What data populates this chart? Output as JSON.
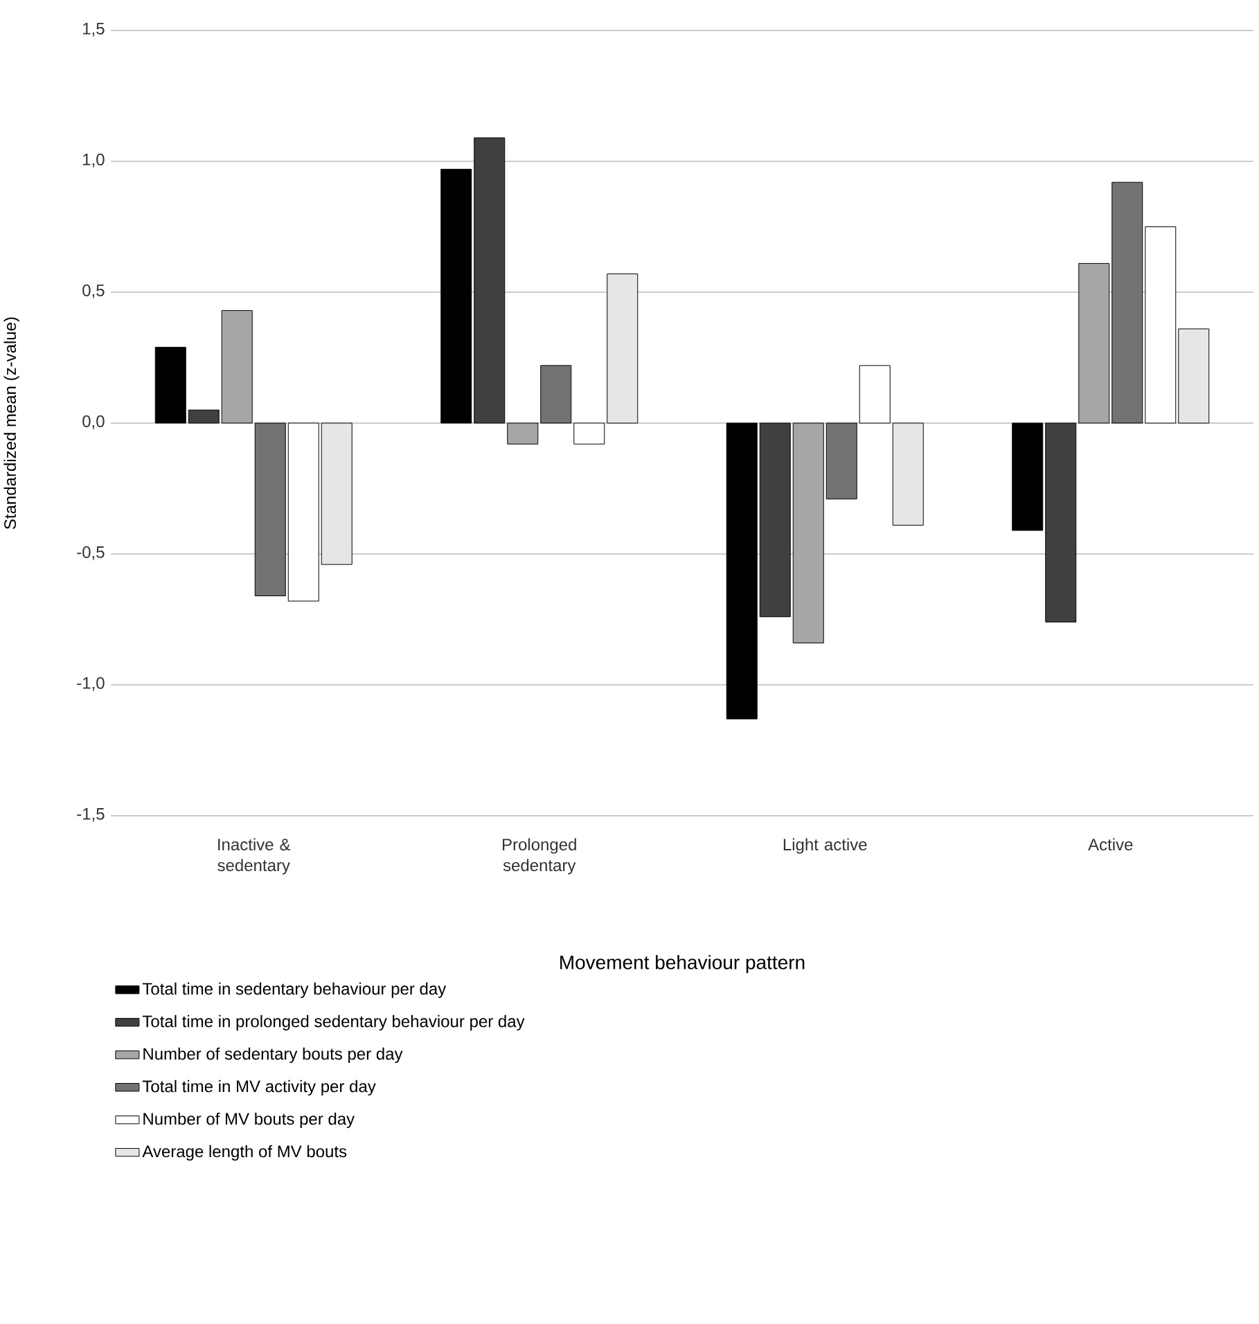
{
  "chart_data": {
    "type": "bar",
    "xlabel": "Movement behaviour pattern",
    "ylabel": "Standardized mean (z-value)",
    "categories": [
      "Inactive & sedentary",
      "Prolonged sedentary",
      "Light active",
      "Active"
    ],
    "ylim": [
      -1.5,
      1.5
    ],
    "yticks": [
      {
        "value": -1.5,
        "label": "-1,5"
      },
      {
        "value": -1.0,
        "label": "-1,0"
      },
      {
        "value": -0.5,
        "label": "-0,5"
      },
      {
        "value": 0,
        "label": "0,0"
      },
      {
        "value": 0.5,
        "label": "0,5"
      },
      {
        "value": 1.0,
        "label": "1,0"
      },
      {
        "value": 1.5,
        "label": "1,5"
      }
    ],
    "grid": "y",
    "legend": "bottom",
    "series": [
      {
        "name": "Total time in sedentary behaviour per day",
        "color": "#000000",
        "values": [
          0.29,
          0.97,
          -1.13,
          -0.41
        ]
      },
      {
        "name": "Total time in prolonged sedentary behaviour per day",
        "color": "#404040",
        "values": [
          0.05,
          1.09,
          -0.74,
          -0.76
        ]
      },
      {
        "name": "Number of sedentary bouts per day",
        "color": "#a6a6a6",
        "values": [
          0.43,
          -0.08,
          -0.84,
          0.61
        ]
      },
      {
        "name": "Total time in MV activity per day",
        "color": "#737373",
        "values": [
          -0.66,
          0.22,
          -0.29,
          0.92
        ]
      },
      {
        "name": "Number of MV bouts per day",
        "color": "#ffffff",
        "values": [
          -0.68,
          -0.08,
          0.22,
          0.75
        ]
      },
      {
        "name": "Average length of MV bouts",
        "color": "#e6e6e6",
        "values": [
          -0.54,
          0.57,
          -0.39,
          0.36
        ]
      }
    ]
  }
}
